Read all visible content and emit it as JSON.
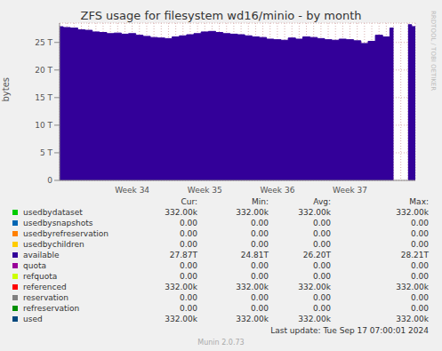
{
  "chart_data": {
    "type": "area",
    "title": "ZFS usage for filesystem wd16/minio - by month",
    "y_label": "bytes",
    "categories": [
      null,
      null,
      null,
      null,
      null,
      null,
      null,
      null,
      null,
      null,
      "Week 34",
      null,
      null,
      null,
      null,
      null,
      null,
      null,
      null,
      null,
      "Week 35",
      null,
      null,
      null,
      null,
      null,
      null,
      null,
      null,
      null,
      "Week 36",
      null,
      null,
      null,
      null,
      null,
      null,
      null,
      null,
      null,
      "Week 37",
      null,
      null,
      null,
      null,
      null,
      null,
      null,
      null,
      null
    ],
    "series": [
      {
        "name": "available",
        "color": "#330099",
        "values": [
          27850000000000,
          27700000000000,
          27600000000000,
          27300000000000,
          27200000000000,
          26900000000000,
          26800000000000,
          26600000000000,
          26700000000000,
          26500000000000,
          26600000000000,
          26300000000000,
          26100000000000,
          25900000000000,
          25800000000000,
          25700000000000,
          26000000000000,
          26200000000000,
          26400000000000,
          26600000000000,
          26900000000000,
          27000000000000,
          26800000000000,
          26600000000000,
          26500000000000,
          26400000000000,
          26200000000000,
          26000000000000,
          25900000000000,
          25600000000000,
          25500000000000,
          25400000000000,
          25800000000000,
          25600000000000,
          26000000000000,
          25900000000000,
          25700000000000,
          25500000000000,
          25400000000000,
          25600000000000,
          25500000000000,
          25300000000000,
          24810000000000,
          25200000000000,
          26300000000000,
          26000000000000,
          27600000000000,
          null,
          28210000000000,
          27870000000000
        ]
      }
    ],
    "ylim": [
      0,
      28500000000000
    ],
    "yticks": [
      0,
      {
        "value": 5000000000000,
        "label": "5 T"
      },
      {
        "value": 10000000000000,
        "label": "10 T"
      },
      {
        "value": 15000000000000,
        "label": "15 T"
      },
      {
        "value": 20000000000000,
        "label": "20 T"
      },
      {
        "value": 25000000000000,
        "label": "25 T"
      }
    ],
    "grid": true
  },
  "legend_table": {
    "columns": [
      "Cur:",
      "Min:",
      "Avg:",
      "Max:"
    ],
    "rows": [
      {
        "name": "usedbydataset",
        "color": "#00cc00",
        "values": [
          "332.00k",
          "332.00k",
          "332.00k",
          "332.00k"
        ]
      },
      {
        "name": "usedbysnapshots",
        "color": "#0066b3",
        "values": [
          "0.00",
          "0.00",
          "0.00",
          "0.00"
        ]
      },
      {
        "name": "usedbyrefreservation",
        "color": "#ff8000",
        "values": [
          "0.00",
          "0.00",
          "0.00",
          "0.00"
        ]
      },
      {
        "name": "usedbychildren",
        "color": "#ffcc00",
        "values": [
          "0.00",
          "0.00",
          "0.00",
          "0.00"
        ]
      },
      {
        "name": "available",
        "color": "#330099",
        "values": [
          "27.87T",
          "24.81T",
          "26.20T",
          "28.21T"
        ]
      },
      {
        "name": "quota",
        "color": "#990099",
        "values": [
          "0.00",
          "0.00",
          "0.00",
          "0.00"
        ]
      },
      {
        "name": "refquota",
        "color": "#ccff00",
        "values": [
          "0.00",
          "0.00",
          "0.00",
          "0.00"
        ]
      },
      {
        "name": "referenced",
        "color": "#ff0000",
        "values": [
          "332.00k",
          "332.00k",
          "332.00k",
          "332.00k"
        ]
      },
      {
        "name": "reservation",
        "color": "#808080",
        "values": [
          "0.00",
          "0.00",
          "0.00",
          "0.00"
        ]
      },
      {
        "name": "refreservation",
        "color": "#008f00",
        "values": [
          "0.00",
          "0.00",
          "0.00",
          "0.00"
        ]
      },
      {
        "name": "used",
        "color": "#00487d",
        "values": [
          "332.00k",
          "332.00k",
          "332.00k",
          "332.00k"
        ]
      }
    ]
  },
  "footer": "Last update: Tue Sep 17 07:00:01 2024",
  "credit": "Munin 2.0.73",
  "watermark": "RRDTOOL / TOBI OETIKER"
}
